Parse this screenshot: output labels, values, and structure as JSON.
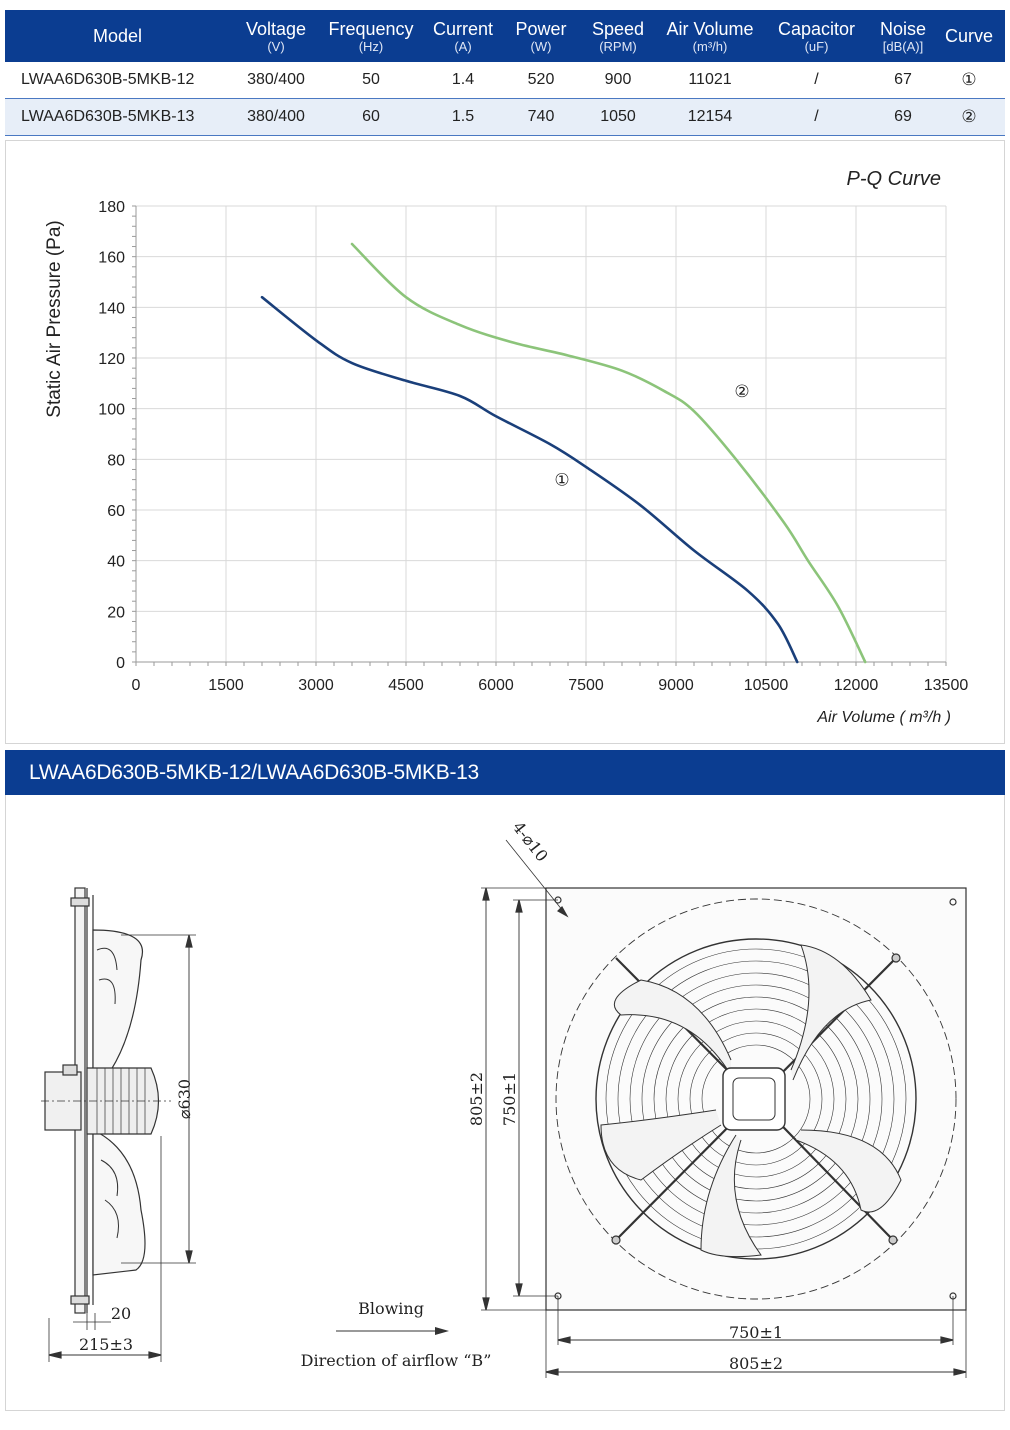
{
  "table": {
    "headers": [
      {
        "name": "Model",
        "unit": ""
      },
      {
        "name": "Voltage",
        "unit": "(V)"
      },
      {
        "name": "Frequency",
        "unit": "(Hz)"
      },
      {
        "name": "Current",
        "unit": "(A)"
      },
      {
        "name": "Power",
        "unit": "(W)"
      },
      {
        "name": "Speed",
        "unit": "(RPM)"
      },
      {
        "name": "Air Volume",
        "unit": "(m³/h)"
      },
      {
        "name": "Capacitor",
        "unit": "(uF)"
      },
      {
        "name": "Noise",
        "unit": "[dB(A)]"
      },
      {
        "name": "Curve",
        "unit": ""
      }
    ],
    "rows": [
      {
        "model": "LWAA6D630B-5MKB-12",
        "voltage": "380/400",
        "frequency": "50",
        "current": "1.4",
        "power": "520",
        "speed": "900",
        "air_volume": "11021",
        "capacitor": "/",
        "noise": "67",
        "curve": "①"
      },
      {
        "model": "LWAA6D630B-5MKB-13",
        "voltage": "380/400",
        "frequency": "60",
        "current": "1.5",
        "power": "740",
        "speed": "1050",
        "air_volume": "12154",
        "capacitor": "/",
        "noise": "69",
        "curve": "②"
      }
    ]
  },
  "chart_data": {
    "type": "line",
    "title": "P-Q Curve",
    "xlabel": "Air Volume ( m³/h )",
    "ylabel": "Static Air Pressure  (Pa)",
    "xlim": [
      0,
      13500
    ],
    "ylim": [
      0,
      180
    ],
    "x_ticks": [
      0,
      1500,
      3000,
      4500,
      6000,
      7500,
      9000,
      10500,
      12000,
      13500
    ],
    "y_ticks": [
      0,
      20,
      40,
      60,
      80,
      100,
      120,
      140,
      160,
      180
    ],
    "grid": true,
    "series": [
      {
        "name": "①",
        "color": "#1a3f7a",
        "points": [
          [
            2100,
            144
          ],
          [
            3000,
            127
          ],
          [
            3600,
            118
          ],
          [
            4500,
            111
          ],
          [
            5400,
            105
          ],
          [
            6000,
            97
          ],
          [
            6900,
            86
          ],
          [
            7500,
            77
          ],
          [
            8400,
            62
          ],
          [
            9300,
            44
          ],
          [
            10200,
            28
          ],
          [
            10700,
            15
          ],
          [
            11021,
            0
          ]
        ],
        "label_at": [
          7100,
          72
        ]
      },
      {
        "name": "②",
        "color": "#8cc47a",
        "points": [
          [
            3600,
            165
          ],
          [
            4500,
            144
          ],
          [
            5400,
            133
          ],
          [
            6300,
            126
          ],
          [
            7200,
            121
          ],
          [
            8100,
            115
          ],
          [
            8800,
            107
          ],
          [
            9300,
            99
          ],
          [
            10000,
            80
          ],
          [
            10800,
            55
          ],
          [
            11200,
            40
          ],
          [
            11700,
            22
          ],
          [
            12154,
            0
          ]
        ],
        "label_at": [
          10100,
          107
        ]
      }
    ]
  },
  "section": {
    "title": "LWAA6D630B-5MKB-12/LWAA6D630B-5MKB-13"
  },
  "drawing": {
    "diameter_label": "⌀630",
    "depth_label": "215±3",
    "flange_label": "20",
    "height_outer_label": "805±2",
    "height_inner_label": "750±1",
    "width_inner_label": "750±1",
    "width_outer_label": "805±2",
    "holes_label": "4-⌀10",
    "blowing_label": "Blowing",
    "airflow_label": "Direction of airflow “B”"
  }
}
